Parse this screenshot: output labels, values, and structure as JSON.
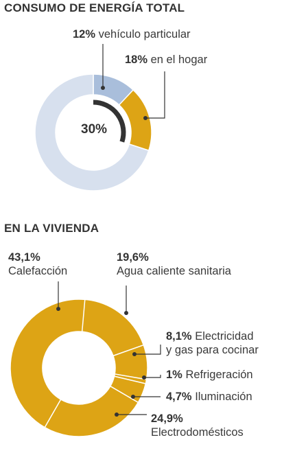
{
  "chart_data": [
    {
      "type": "pie",
      "title": "CONSUMO DE ENERGÍA TOTAL",
      "center_label": "30%",
      "slices": [
        {
          "value": "12%",
          "label": "vehículo particular",
          "fraction": 0.12,
          "color": "#a9bedb"
        },
        {
          "value": "18%",
          "label": "en el hogar",
          "fraction": 0.18,
          "color": "#dda415"
        },
        {
          "value": "",
          "label": "",
          "fraction": 0.7,
          "color": "#d7e0ee"
        }
      ]
    },
    {
      "type": "pie",
      "title": "EN LA VIVIENDA",
      "slices": [
        {
          "value": "19,6%",
          "label": "Agua caliente sanitaria",
          "fraction": 0.196,
          "color": "#dda415"
        },
        {
          "value": "8,1%",
          "label": "Electricidad",
          "label2": "y gas para cocinar",
          "fraction": 0.081,
          "color": "#dda415"
        },
        {
          "value": "1%",
          "label": "Refrigeración",
          "fraction": 0.01,
          "color": "#dda415"
        },
        {
          "value": "4,7%",
          "label": "Iluminación",
          "fraction": 0.047,
          "color": "#dda415"
        },
        {
          "value": "24,9%",
          "label": "Electrodomésticos",
          "fraction": 0.249,
          "color": "#dda415"
        },
        {
          "value": "43,1%",
          "label": "Calefacción",
          "fraction": 0.431,
          "color": "#dda415"
        }
      ]
    }
  ]
}
